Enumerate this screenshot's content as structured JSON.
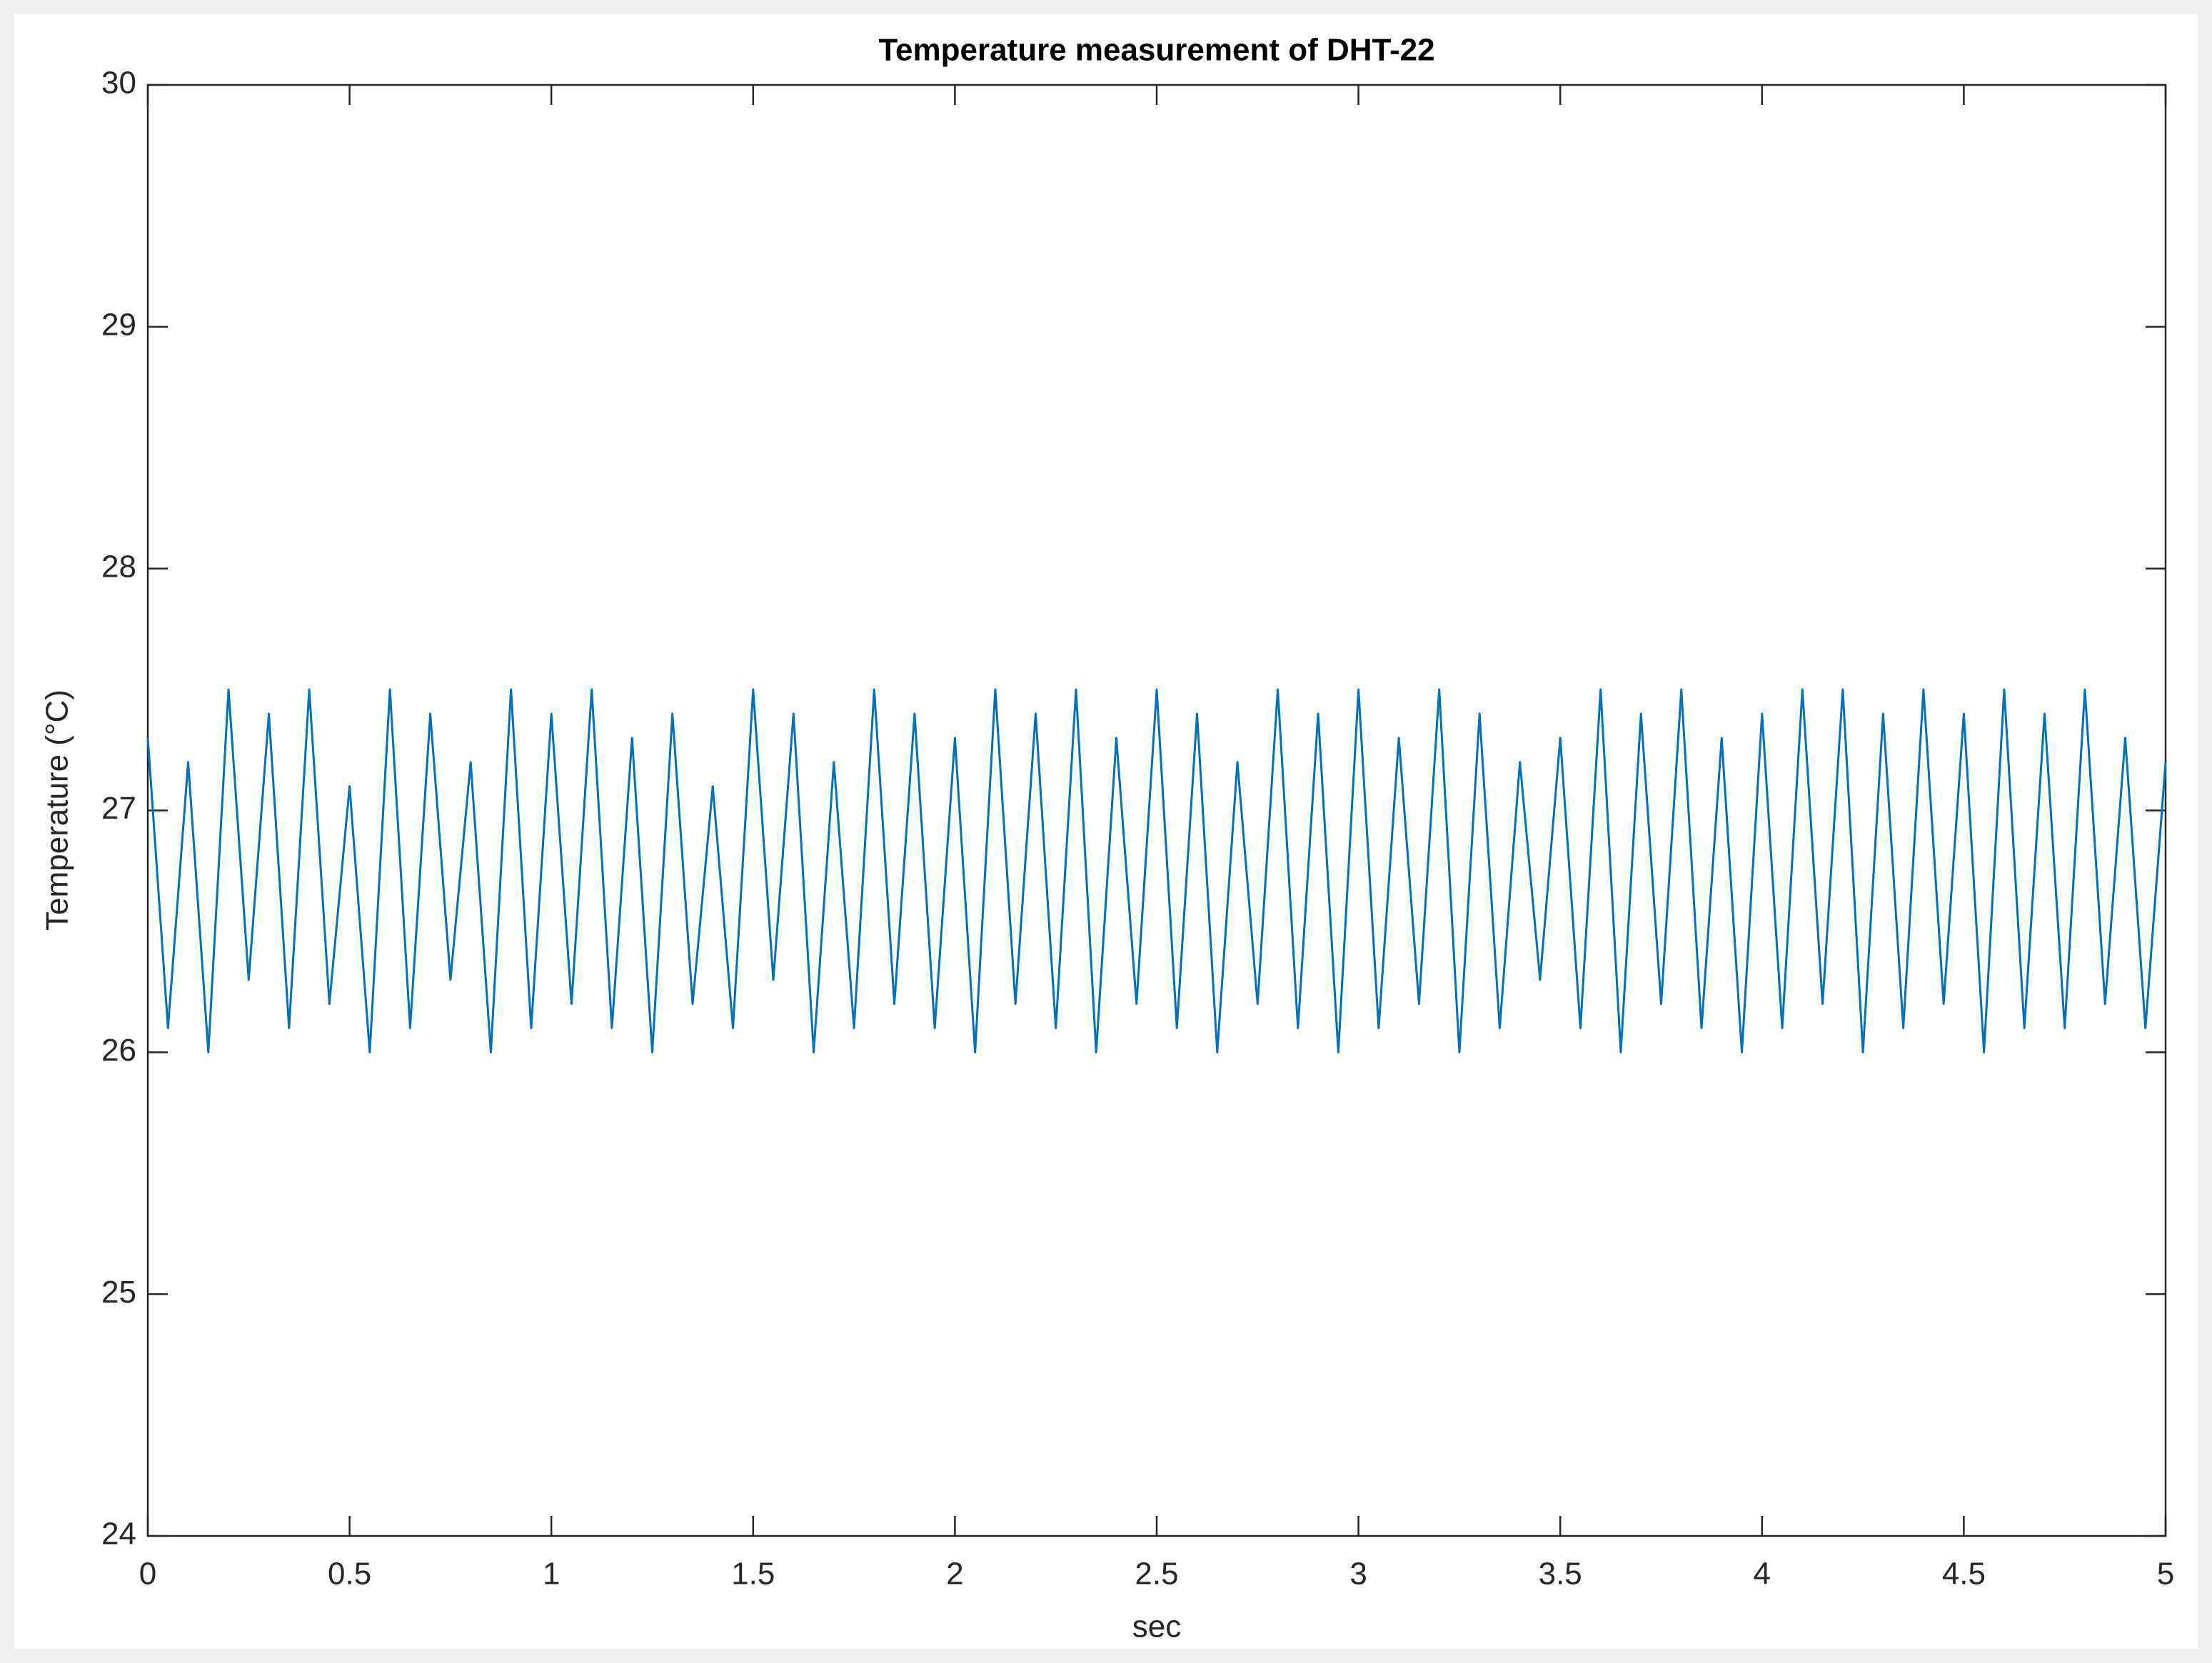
{
  "chart_data": {
    "type": "line",
    "title": "Temperature measurement of DHT-22",
    "x_label": "sec",
    "y_label": "Temperature (°C)",
    "x": [
      0,
      0.05,
      0.1,
      0.15,
      0.2,
      0.25,
      0.3,
      0.35,
      0.4,
      0.45,
      0.5,
      0.55,
      0.6,
      0.65,
      0.7,
      0.75,
      0.8,
      0.85,
      0.9,
      0.95,
      1,
      1.05,
      1.1,
      1.15,
      1.2,
      1.25,
      1.3,
      1.35,
      1.4,
      1.45,
      1.5,
      1.55,
      1.6,
      1.65,
      1.7,
      1.75,
      1.8,
      1.85,
      1.9,
      1.95,
      2,
      2.05,
      2.1,
      2.15,
      2.2,
      2.25,
      2.3,
      2.35,
      2.4,
      2.45,
      2.5,
      2.55,
      2.6,
      2.65,
      2.7,
      2.75,
      2.8,
      2.85,
      2.9,
      2.95,
      3,
      3.05,
      3.1,
      3.15,
      3.2,
      3.25,
      3.3,
      3.35,
      3.4,
      3.45,
      3.5,
      3.55,
      3.6,
      3.65,
      3.7,
      3.75,
      3.8,
      3.85,
      3.9,
      3.95,
      4,
      4.05,
      4.1,
      4.15,
      4.2,
      4.25,
      4.3,
      4.35,
      4.4,
      4.45,
      4.5,
      4.55,
      4.6,
      4.65,
      4.7,
      4.75,
      4.8,
      4.85,
      4.9,
      4.95,
      5
    ],
    "series": [
      {
        "color": "#0072bd",
        "values": [
          27.3,
          26.1,
          27.2,
          26.0,
          27.5,
          26.3,
          27.4,
          26.1,
          27.5,
          26.2,
          27.1,
          26.0,
          27.5,
          26.1,
          27.4,
          26.3,
          27.2,
          26.0,
          27.5,
          26.1,
          27.4,
          26.2,
          27.5,
          26.1,
          27.3,
          26.0,
          27.4,
          26.2,
          27.1,
          26.1,
          27.5,
          26.3,
          27.4,
          26.0,
          27.2,
          26.1,
          27.5,
          26.2,
          27.4,
          26.1,
          27.3,
          26.0,
          27.5,
          26.2,
          27.4,
          26.1,
          27.5,
          26.0,
          27.3,
          26.2,
          27.5,
          26.1,
          27.4,
          26.0,
          27.2,
          26.2,
          27.5,
          26.1,
          27.4,
          26.0,
          27.5,
          26.1,
          27.3,
          26.2,
          27.5,
          26.0,
          27.4,
          26.1,
          27.2,
          26.3,
          27.3,
          26.1,
          27.5,
          26.0,
          27.4,
          26.2,
          27.5,
          26.1,
          27.3,
          26.0,
          27.4,
          26.1,
          27.5,
          26.2,
          27.5,
          26.0,
          27.4,
          26.1,
          27.5,
          26.2,
          27.4,
          26.0,
          27.5,
          26.1,
          27.4,
          26.1,
          27.5,
          26.2,
          27.3,
          26.1,
          27.2
        ]
      }
    ],
    "xlim": [
      0,
      5
    ],
    "xticks": [
      0,
      0.5,
      1,
      1.5,
      2,
      2.5,
      3,
      3.5,
      4,
      4.5,
      5
    ],
    "ylim": [
      24,
      30
    ],
    "yticks": [
      24,
      25,
      26,
      27,
      28,
      29,
      30
    ]
  }
}
